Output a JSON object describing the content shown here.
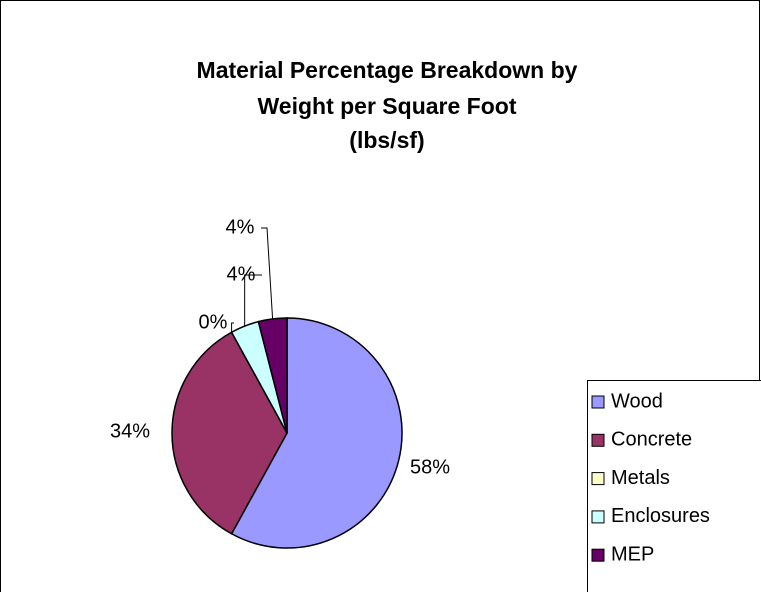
{
  "chart_data": {
    "type": "pie",
    "title": [
      "Material Percentage Breakdown by",
      "Weight per Square Foot",
      "(lbs/sf)"
    ],
    "categories": [
      "Wood",
      "Concrete",
      "Metals",
      "Enclosures",
      "MEP"
    ],
    "values": [
      58,
      34,
      0,
      4,
      4
    ],
    "value_labels": [
      "58%",
      "34%",
      "0%",
      "4%",
      "4%"
    ],
    "colors": [
      "#9999ff",
      "#993366",
      "#ffffcc",
      "#ccffff",
      "#660066"
    ],
    "legend": "right"
  }
}
